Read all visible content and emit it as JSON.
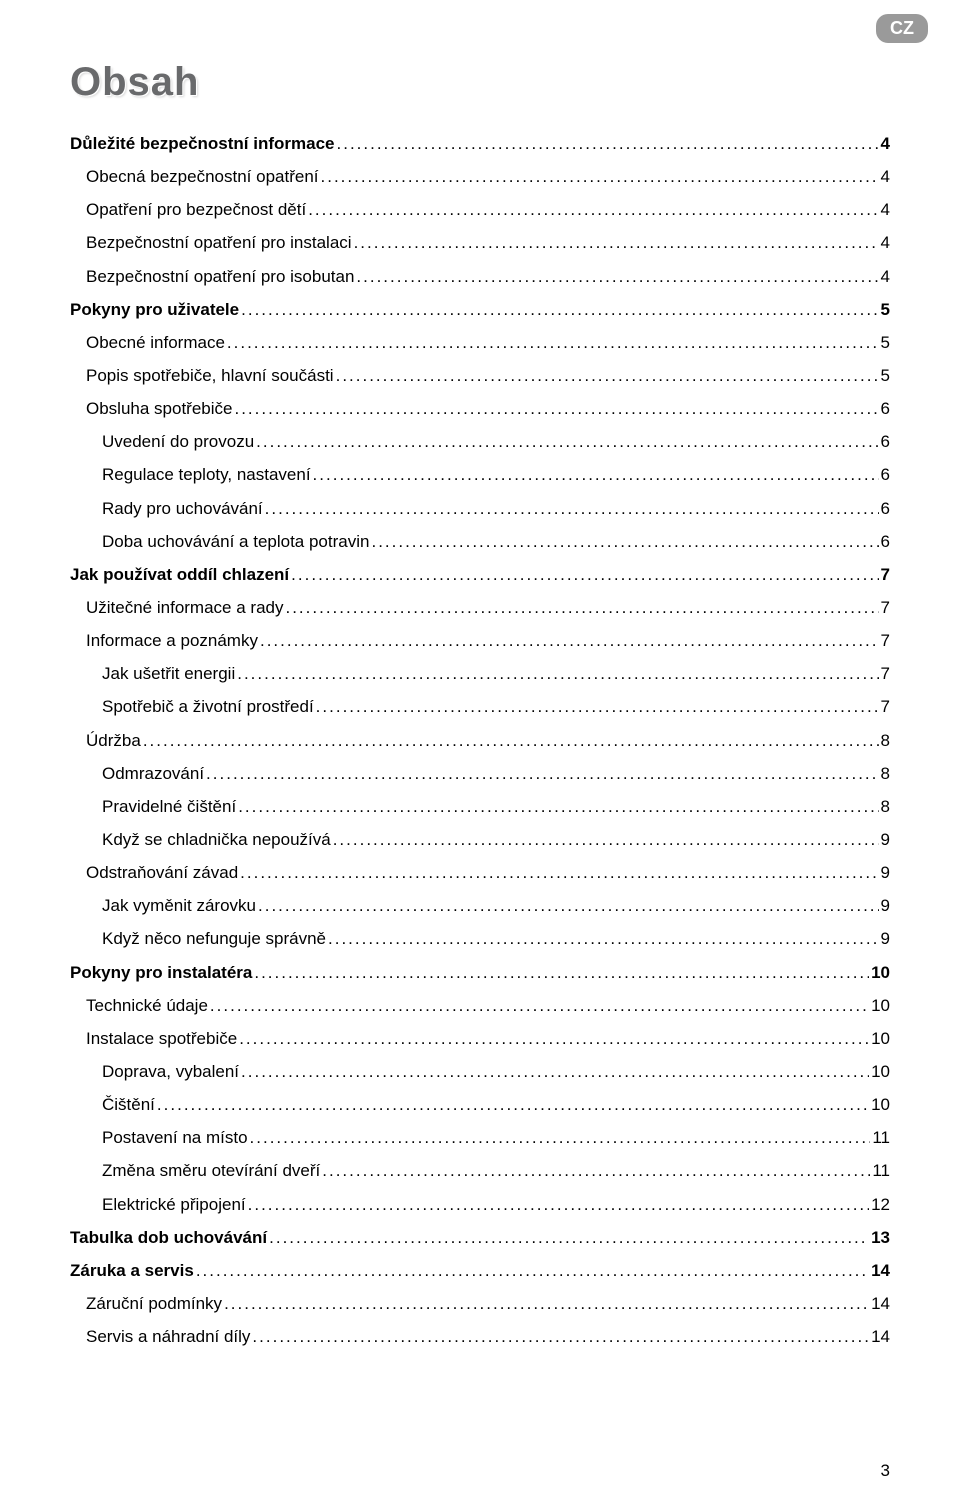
{
  "lang_badge": "CZ",
  "title": "Obsah",
  "page_number": "3",
  "text_color": "#000000",
  "title_color": "#696a6c",
  "badge_bg": "#9a9a9a",
  "toc": [
    {
      "label": "Důležité bezpečnostní informace",
      "page": "4",
      "level": 0
    },
    {
      "label": "Obecná bezpečnostní opatření",
      "page": "4",
      "level": 1
    },
    {
      "label": "Opatření pro bezpečnost dětí",
      "page": "4",
      "level": 1
    },
    {
      "label": "Bezpečnostní opatření pro instalaci",
      "page": "4",
      "level": 1
    },
    {
      "label": "Bezpečnostní opatření pro isobutan",
      "page": "4",
      "level": 1
    },
    {
      "label": "Pokyny pro uživatele",
      "page": "5",
      "level": 0
    },
    {
      "label": "Obecné informace",
      "page": "5",
      "level": 1
    },
    {
      "label": "Popis spotřebiče, hlavní součásti",
      "page": "5",
      "level": 1
    },
    {
      "label": "Obsluha spotřebiče",
      "page": "6",
      "level": 1
    },
    {
      "label": "Uvedení do provozu",
      "page": "6",
      "level": 2
    },
    {
      "label": "Regulace teploty, nastavení",
      "page": "6",
      "level": 2
    },
    {
      "label": "Rady pro uchovávání",
      "page": "6",
      "level": 2
    },
    {
      "label": "Doba uchovávání a teplota potravin",
      "page": "6",
      "level": 2
    },
    {
      "label": "Jak používat oddíl chlazení",
      "page": "7",
      "level": 0
    },
    {
      "label": "Užitečné informace a rady",
      "page": "7",
      "level": 1
    },
    {
      "label": "Informace a poznámky",
      "page": "7",
      "level": 1
    },
    {
      "label": "Jak ušetřit energii",
      "page": "7",
      "level": 2
    },
    {
      "label": "Spotřebič a životní prostředí",
      "page": "7",
      "level": 2
    },
    {
      "label": "Údržba",
      "page": "8",
      "level": 1
    },
    {
      "label": "Odmrazování",
      "page": "8",
      "level": 2
    },
    {
      "label": "Pravidelné čištění",
      "page": "8",
      "level": 2
    },
    {
      "label": "Když se chladnička nepoužívá",
      "page": "9",
      "level": 2
    },
    {
      "label": "Odstraňování závad",
      "page": "9",
      "level": 1
    },
    {
      "label": "Jak vyměnit zárovku",
      "page": "9",
      "level": 2
    },
    {
      "label": "Když něco nefunguje správně",
      "page": "9",
      "level": 2
    },
    {
      "label": "Pokyny pro instalatéra",
      "page": "10",
      "level": 0
    },
    {
      "label": "Technické údaje",
      "page": "10",
      "level": 1
    },
    {
      "label": "Instalace spotřebiče",
      "page": "10",
      "level": 1
    },
    {
      "label": "Doprava, vybalení",
      "page": "10",
      "level": 2
    },
    {
      "label": "Čištění",
      "page": "10",
      "level": 2
    },
    {
      "label": "Postavení na místo",
      "page": "11",
      "level": 2
    },
    {
      "label": "Změna směru otevírání dveří",
      "page": "11",
      "level": 2
    },
    {
      "label": "Elektrické připojení",
      "page": "12",
      "level": 2
    },
    {
      "label": "Tabulka dob uchovávání",
      "page": "13",
      "level": 0
    },
    {
      "label": "Záruka a servis",
      "page": "14",
      "level": 0
    },
    {
      "label": "Záruční podmínky",
      "page": "14",
      "level": 1
    },
    {
      "label": "Servis a náhradní díly",
      "page": "14",
      "level": 1
    }
  ]
}
